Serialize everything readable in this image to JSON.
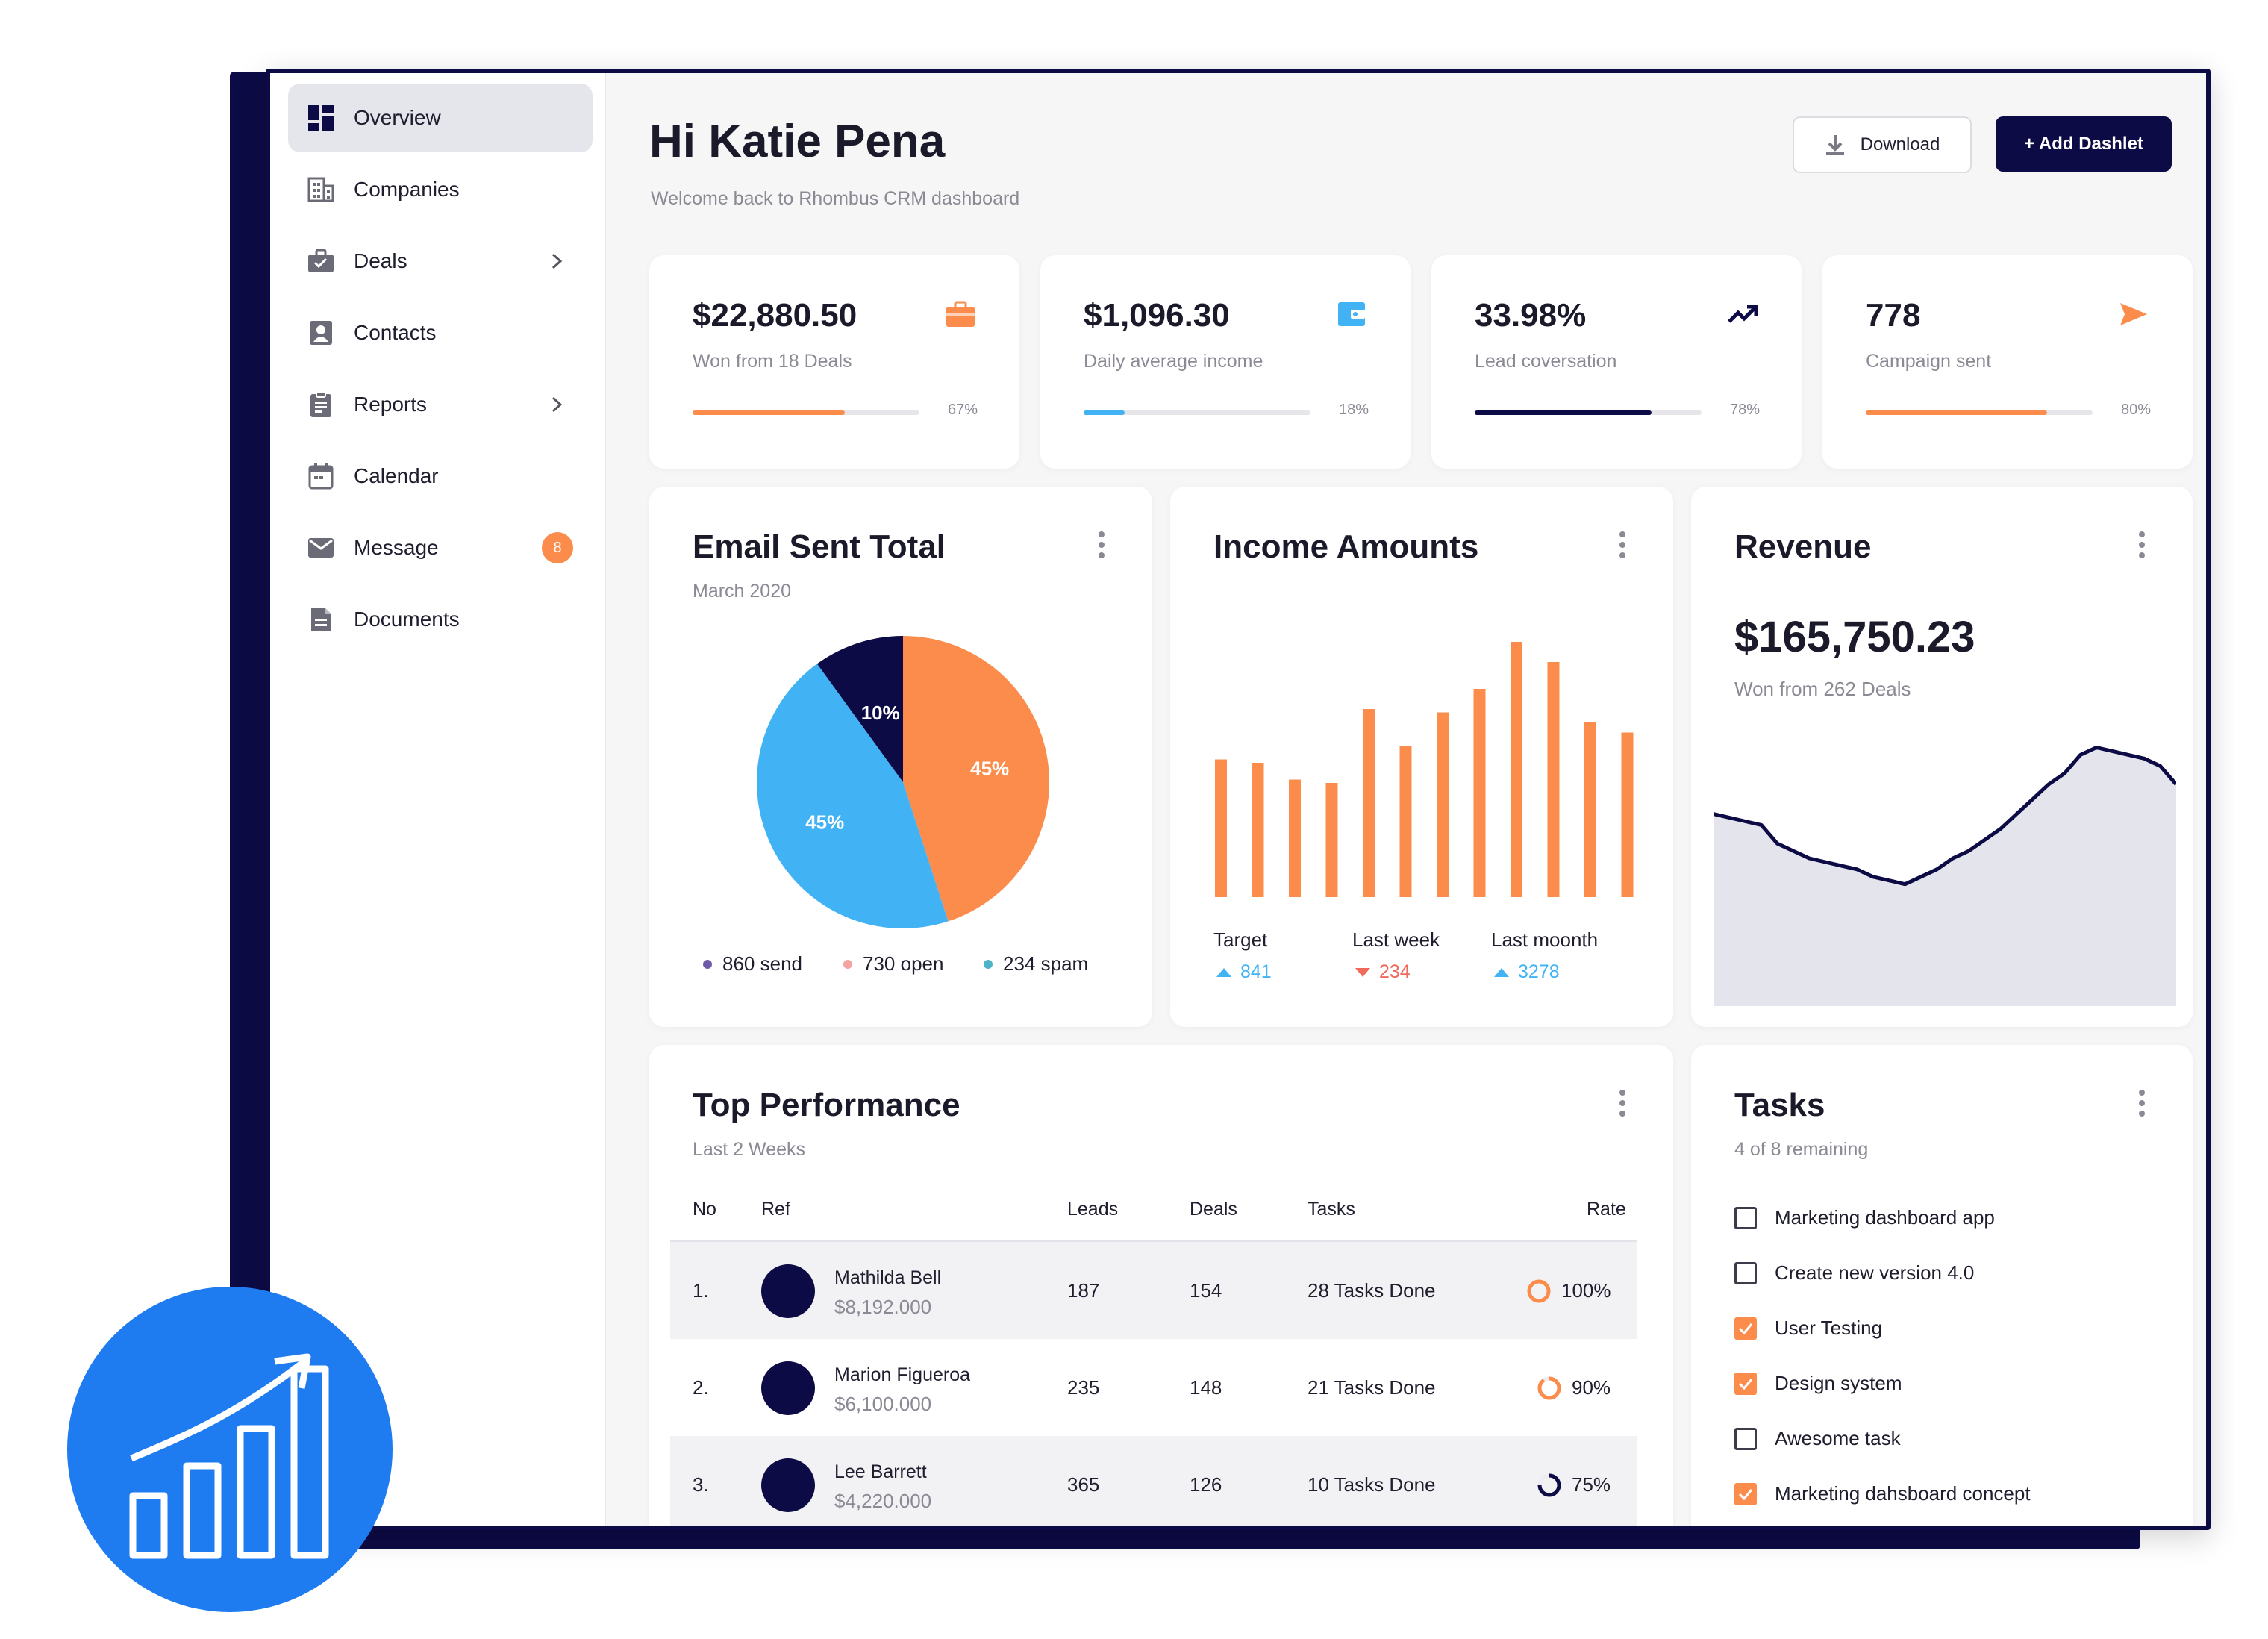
{
  "sidebar": {
    "items": [
      {
        "label": "Overview",
        "icon": "dashboard-icon",
        "active": true
      },
      {
        "label": "Companies",
        "icon": "building-icon"
      },
      {
        "label": "Deals",
        "icon": "briefcase-icon",
        "chevron": true
      },
      {
        "label": "Contacts",
        "icon": "contact-card-icon"
      },
      {
        "label": "Reports",
        "icon": "clipboard-icon",
        "chevron": true
      },
      {
        "label": "Calendar",
        "icon": "calendar-icon"
      },
      {
        "label": "Message",
        "icon": "envelope-icon",
        "badge": "8"
      },
      {
        "label": "Documents",
        "icon": "document-icon"
      }
    ]
  },
  "header": {
    "greeting": "Hi Katie Pena",
    "welcome": "Welcome back to Rhombus CRM dashboard",
    "download_label": "Download",
    "add_label": "+ Add Dashlet"
  },
  "stats": [
    {
      "value": "$22,880.50",
      "label": "Won from 18 Deals",
      "pct_text": "67%",
      "progress": 0.67,
      "color": "#fb8c4b",
      "icon": "briefcase-icon"
    },
    {
      "value": "$1,096.30",
      "label": "Daily average income",
      "pct_text": "18%",
      "progress": 0.18,
      "color": "#41b3f5",
      "icon": "wallet-icon"
    },
    {
      "value": "33.98%",
      "label": "Lead coversation",
      "pct_text": "78%",
      "progress": 0.78,
      "color": "#0d0b45",
      "icon": "trending-up-icon"
    },
    {
      "value": "778",
      "label": "Campaign sent",
      "pct_text": "80%",
      "progress": 0.8,
      "color": "#fb8c4b",
      "icon": "send-icon"
    }
  ],
  "email": {
    "title": "Email Sent Total",
    "subtitle": "March 2020",
    "legend": [
      {
        "label": "860 send",
        "color": "#6e5aa8"
      },
      {
        "label": "730 open",
        "color": "#f4a3a3"
      },
      {
        "label": "234 spam",
        "color": "#4fb3c8"
      }
    ]
  },
  "income": {
    "title": "Income Amounts",
    "labels": [
      {
        "label": "Target",
        "value": "841",
        "dir": "up",
        "color": "#41b3f5"
      },
      {
        "label": "Last week",
        "value": "234",
        "dir": "down",
        "color": "#f06a5c"
      },
      {
        "label": "Last moonth",
        "value": "3278",
        "dir": "up",
        "color": "#41b3f5"
      }
    ]
  },
  "revenue": {
    "title": "Revenue",
    "value": "$165,750.23",
    "subtitle": "Won from 262 Deals"
  },
  "chart_data": [
    {
      "type": "pie",
      "labels": [
        "",
        "",
        ""
      ],
      "values": [
        45,
        45,
        10
      ],
      "colors": [
        "#fb8c4b",
        "#41b3f5",
        "#0d0b45"
      ],
      "data_labels": [
        "45%",
        "45%",
        "10%"
      ]
    },
    {
      "type": "bar",
      "values": [
        41,
        40,
        35,
        34,
        56,
        45,
        55,
        62,
        76,
        70,
        52,
        49
      ],
      "color": "#fb8c4b",
      "ylim": [
        0,
        80
      ]
    },
    {
      "type": "area",
      "values": [
        52,
        51,
        50,
        49,
        44,
        42,
        40,
        39,
        38,
        37,
        35,
        34,
        33,
        35,
        37,
        40,
        42,
        45,
        48,
        52,
        56,
        60,
        63,
        68,
        70,
        69,
        68,
        67,
        65,
        60
      ],
      "line_color": "#0d0b45",
      "fill_color": "#e4e4ec",
      "ylim": [
        0,
        80
      ]
    }
  ],
  "performance": {
    "title": "Top Performance",
    "subtitle": "Last 2 Weeks",
    "headers": [
      "No",
      "Ref",
      "Leads",
      "Deals",
      "Tasks",
      "Rate"
    ],
    "rows": [
      {
        "no": "1.",
        "name": "Mathilda Bell",
        "amount": "$8,192.000",
        "leads": "187",
        "deals": "154",
        "tasks": "28 Tasks Done",
        "rate": "100%",
        "rate_value": 1.0,
        "ring_color": "#fb8c4b"
      },
      {
        "no": "2.",
        "name": "Marion Figueroa",
        "amount": "$6,100.000",
        "leads": "235",
        "deals": "148",
        "tasks": "21 Tasks Done",
        "rate": "90%",
        "rate_value": 0.9,
        "ring_color": "#fb8c4b"
      },
      {
        "no": "3.",
        "name": "Lee Barrett",
        "amount": "$4,220.000",
        "leads": "365",
        "deals": "126",
        "tasks": "10 Tasks Done",
        "rate": "75%",
        "rate_value": 0.75,
        "ring_color": "#0d0b45"
      }
    ]
  },
  "tasks": {
    "title": "Tasks",
    "subtitle": "4 of 8 remaining",
    "items": [
      {
        "label": "Marketing dashboard app",
        "checked": false
      },
      {
        "label": "Create new version 4.0",
        "checked": false
      },
      {
        "label": "User Testing",
        "checked": true
      },
      {
        "label": "Design system",
        "checked": true
      },
      {
        "label": "Awesome task",
        "checked": false
      },
      {
        "label": "Marketing dahsboard concept",
        "checked": true
      }
    ]
  },
  "badge": {
    "icon": "growth-chart-icon",
    "color": "#1e7cf0"
  }
}
